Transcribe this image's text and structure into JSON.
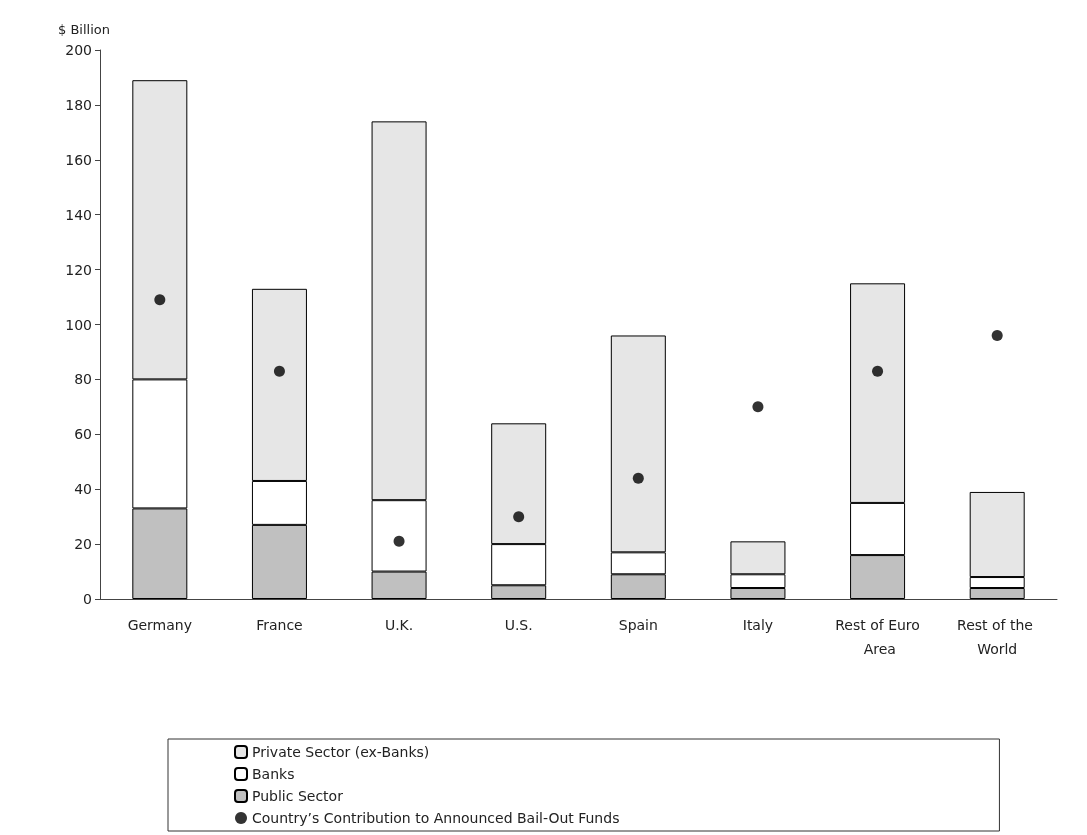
{
  "chart_data": {
    "type": "bar",
    "ylabel": "$ Billion",
    "stacked": true,
    "categories": [
      "Germany",
      "France",
      "U.K.",
      "U.S.",
      "Spain",
      "Italy",
      "Rest of Euro Area",
      "Rest of the World"
    ],
    "series": [
      {
        "name": "Public Sector",
        "color": "#c0c0c0",
        "values": [
          33,
          27,
          10,
          5,
          9,
          4,
          16,
          4
        ]
      },
      {
        "name": "Banks",
        "color": "#ffffff",
        "values": [
          47,
          16,
          26,
          15,
          8,
          5,
          19,
          4
        ]
      },
      {
        "name": "Private Sector (ex-Banks)",
        "color": "#e6e6e6",
        "values": [
          109,
          70,
          138,
          44,
          79,
          12,
          80,
          31
        ]
      },
      {
        "name": "Country’s Contribution to Announced Bail-Out Funds",
        "type": "scatter",
        "color": "#000000",
        "x": [
          "Germany",
          "France",
          "U.K.",
          "U.S.",
          "Spain",
          "Italy",
          "Rest of Euro Area",
          "Rest of the World"
        ],
        "values": [
          109,
          83,
          21,
          30,
          44,
          70,
          83,
          96
        ]
      }
    ],
    "ylim": [
      0,
      200
    ],
    "yticks": [
      0,
      20,
      40,
      60,
      80,
      100,
      120,
      140,
      160,
      180,
      200
    ],
    "grid": false,
    "legend": "bottom",
    "marker": "circle"
  }
}
